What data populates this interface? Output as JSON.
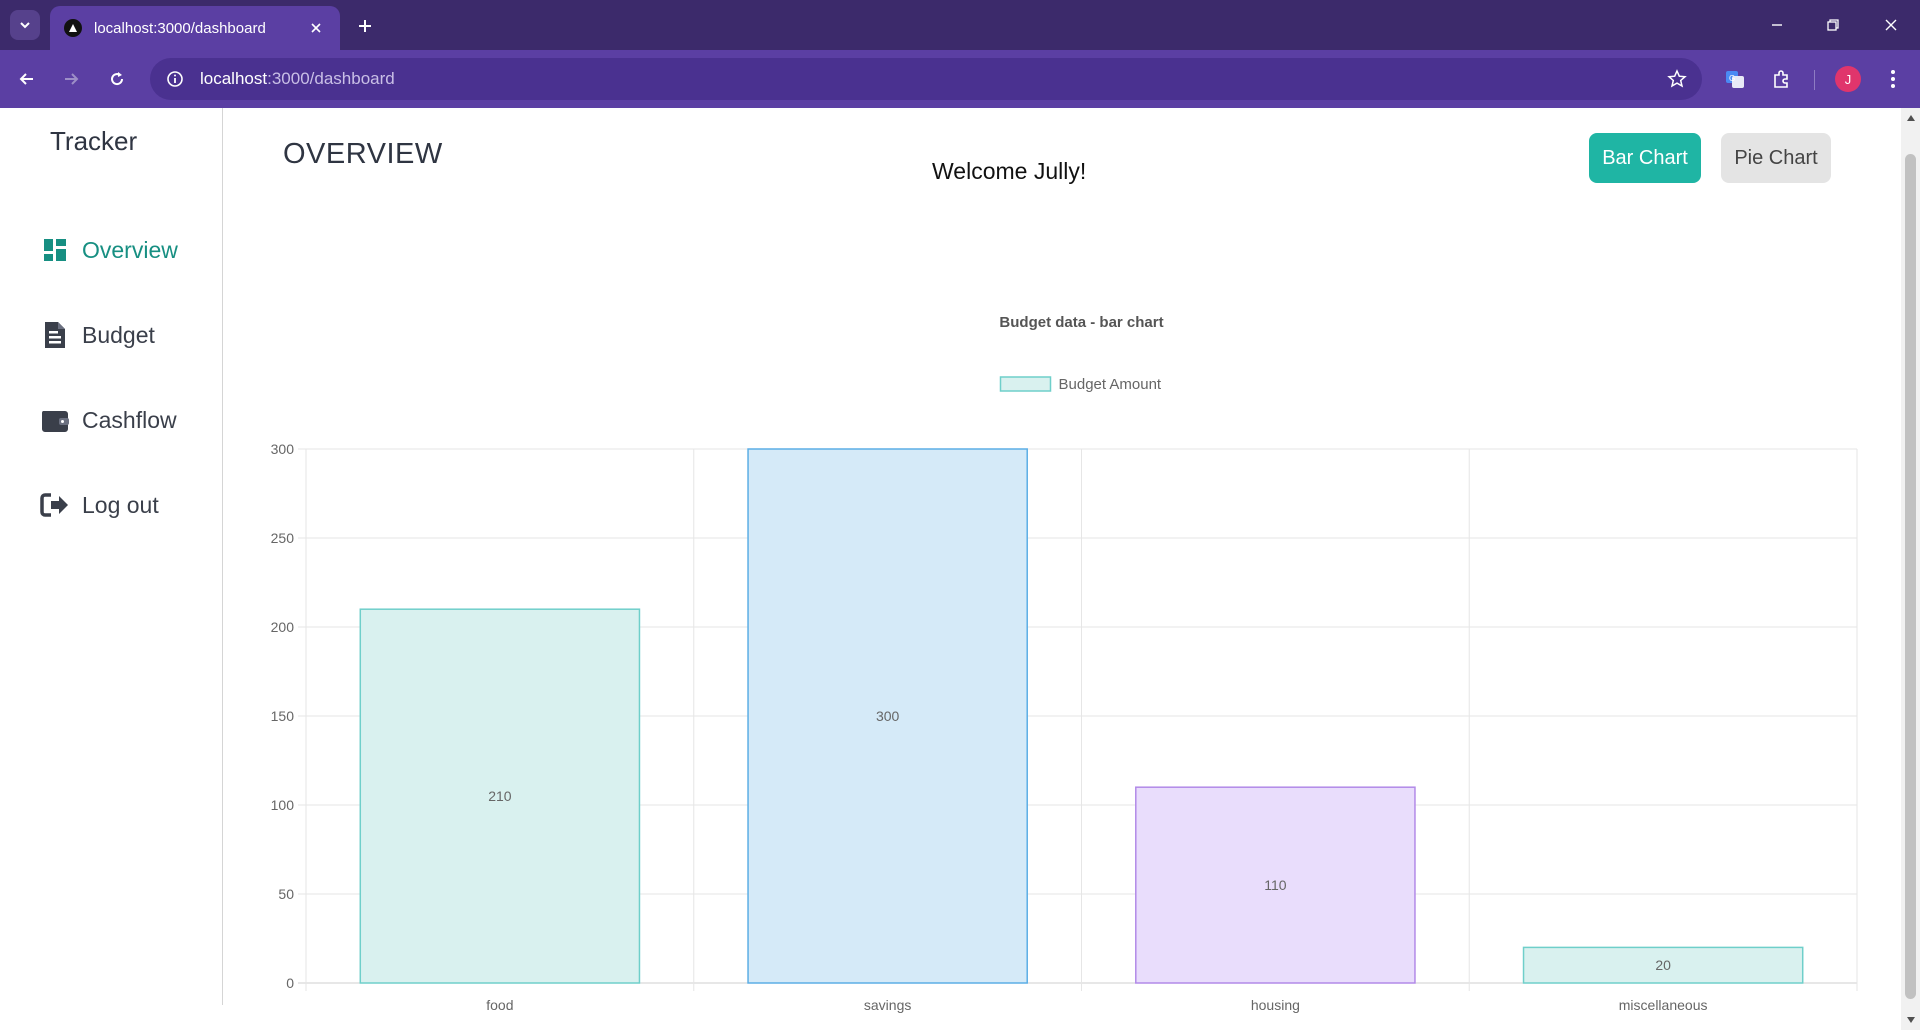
{
  "browser": {
    "tab_title": "localhost:3000/dashboard",
    "url_host": "localhost",
    "url_path": ":3000/dashboard",
    "avatar_initial": "J"
  },
  "sidebar": {
    "brand": "Tracker",
    "items": [
      {
        "label": "Overview",
        "icon": "dashboard-icon",
        "active": true
      },
      {
        "label": "Budget",
        "icon": "document-icon",
        "active": false
      },
      {
        "label": "Cashflow",
        "icon": "wallet-icon",
        "active": false
      },
      {
        "label": "Log out",
        "icon": "logout-icon",
        "active": false
      }
    ]
  },
  "header": {
    "title": "OVERVIEW",
    "welcome": "Welcome Jully!",
    "bar_chart_label": "Bar Chart",
    "pie_chart_label": "Pie Chart"
  },
  "colors": {
    "accent": "#1fb5a4",
    "active_nav": "#178f82"
  },
  "chart_data": {
    "type": "bar",
    "title": "Budget data - bar chart",
    "xlabel": "",
    "ylabel": "",
    "categories": [
      "food",
      "savings",
      "housing",
      "miscellaneous"
    ],
    "series": [
      {
        "name": "Budget Amount",
        "values": [
          210,
          300,
          110,
          20
        ],
        "fill_colors": [
          "#d9f1ef",
          "#d5eaf8",
          "#e9ddfc",
          "#d9f1ef"
        ],
        "border_colors": [
          "#6fcfca",
          "#5caee5",
          "#b28ae8",
          "#6fcfca"
        ]
      }
    ],
    "ylim": [
      0,
      300
    ],
    "yticks": [
      "0",
      "50",
      "100",
      "150",
      "200",
      "250",
      "300"
    ],
    "data_labels": [
      "210",
      "300",
      "110",
      "20"
    ],
    "legend_position": "top",
    "grid": true
  }
}
